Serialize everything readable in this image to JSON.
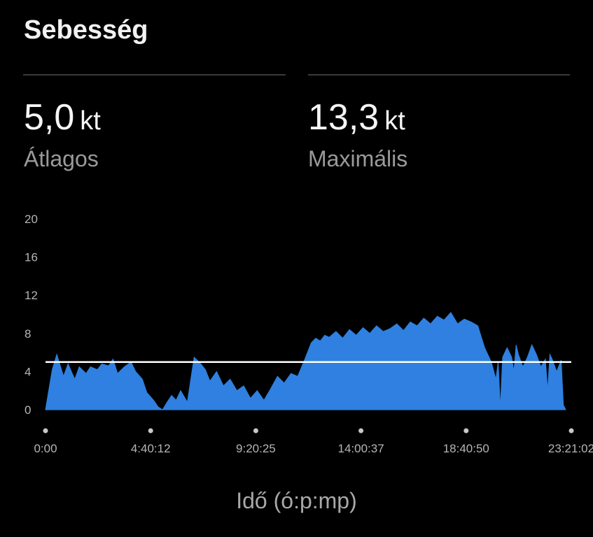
{
  "header": {
    "title": "Sebesség"
  },
  "stats": [
    {
      "value": "5,0",
      "unit": "kt",
      "label": "Átlagos"
    },
    {
      "value": "13,3",
      "unit": "kt",
      "label": "Maximális"
    }
  ],
  "colors": {
    "fill": "#2f80e0",
    "average_line": "#ffffff",
    "tick_text": "#b5b5b5",
    "dot": "#c8c8c8"
  },
  "chart_data": {
    "type": "area",
    "xlabel": "Idő (ó:p:mp)",
    "ylabel": "",
    "ylim": [
      0,
      20
    ],
    "y_ticks": [
      0,
      4,
      8,
      12,
      16,
      20
    ],
    "x_ticks": [
      "0:00",
      "4:40:12",
      "9:20:25",
      "14:00:37",
      "18:40:50",
      "23:21:02"
    ],
    "x_tick_hours": [
      0,
      4.67,
      9.34,
      14.01,
      18.68,
      23.35
    ],
    "xlim_hours": [
      0,
      23.35
    ],
    "average": 5.0,
    "series": [
      {
        "x_hours": [
          0,
          0.3,
          0.5,
          0.8,
          1.0,
          1.3,
          1.5,
          1.8,
          2.0,
          2.3,
          2.5,
          2.8,
          3.0,
          3.2,
          3.5,
          3.8,
          4.0,
          4.3,
          4.5,
          4.8,
          5.0,
          5.2,
          5.4,
          5.6,
          5.8,
          6.0,
          6.3,
          6.6,
          6.9,
          7.1,
          7.3,
          7.6,
          7.9,
          8.2,
          8.5,
          8.8,
          9.1,
          9.4,
          9.7,
          10.0,
          10.3,
          10.6,
          10.9,
          11.2,
          11.5,
          11.8,
          12.0,
          12.2,
          12.4,
          12.6,
          12.9,
          13.2,
          13.5,
          13.8,
          14.1,
          14.4,
          14.7,
          15.0,
          15.3,
          15.6,
          15.9,
          16.2,
          16.5,
          16.8,
          17.1,
          17.4,
          17.7,
          18.0,
          18.3,
          18.6,
          18.9,
          19.2,
          19.5,
          19.8,
          20.0,
          20.1,
          20.2,
          20.3,
          20.5,
          20.7,
          20.8,
          20.9,
          21.0,
          21.2,
          21.4,
          21.6,
          21.8,
          22.0,
          22.2,
          22.3,
          22.4,
          22.5,
          22.7,
          22.9,
          23.0,
          23.1
        ],
        "values": [
          0,
          4.2,
          5.8,
          3.5,
          4.8,
          3.2,
          4.5,
          3.8,
          4.5,
          4.2,
          4.8,
          4.6,
          5.3,
          3.8,
          4.5,
          5.0,
          4.0,
          3.2,
          1.8,
          1.0,
          0.3,
          0,
          0.8,
          1.5,
          1.0,
          2.0,
          0.8,
          5.5,
          4.8,
          4.2,
          3.0,
          4.0,
          2.5,
          3.2,
          2.0,
          2.5,
          1.2,
          2.0,
          1.0,
          2.2,
          3.5,
          2.8,
          3.8,
          3.5,
          5.2,
          7.0,
          7.5,
          7.2,
          7.8,
          7.6,
          8.2,
          7.5,
          8.4,
          7.8,
          8.6,
          8.0,
          8.8,
          8.2,
          8.5,
          9.0,
          8.3,
          9.2,
          8.8,
          9.6,
          9.0,
          9.8,
          9.4,
          10.2,
          9.0,
          9.5,
          9.2,
          8.8,
          6.5,
          5.0,
          3.2,
          5.0,
          0.2,
          5.5,
          6.5,
          5.5,
          4.0,
          6.8,
          5.8,
          4.5,
          5.5,
          6.8,
          5.8,
          4.5,
          5.3,
          2.0,
          5.8,
          5.3,
          4.0,
          5.2,
          0.5,
          0
        ]
      }
    ]
  }
}
